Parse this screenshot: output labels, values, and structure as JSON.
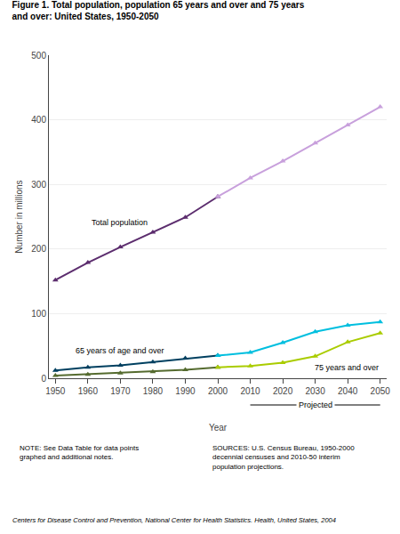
{
  "chart_data": {
    "type": "line",
    "title": "Figure 1. Total population, population 65 years and over and 75 years\nand over: United States, 1950-2050",
    "xlabel": "Year",
    "ylabel": "Number in millions",
    "x": [
      1950,
      1960,
      1970,
      1980,
      1990,
      2000,
      2010,
      2020,
      2030,
      2040,
      2050
    ],
    "xlim": [
      1948,
      2052
    ],
    "xticks": [
      1950,
      1960,
      1970,
      1980,
      1990,
      2000,
      2010,
      2020,
      2030,
      2040,
      2050
    ],
    "ylim": [
      0,
      500
    ],
    "yticks": [
      0,
      100,
      200,
      300,
      400,
      500
    ],
    "grid": true,
    "marker": "triangle",
    "series": [
      {
        "name": "Total population",
        "color": "#5C2D6E",
        "values": [
          152,
          179,
          203,
          226,
          249,
          281,
          null,
          null,
          null,
          null,
          null
        ]
      },
      {
        "name": "65 years of age and over",
        "color": "#004060",
        "values": [
          12,
          17,
          20,
          25,
          31,
          35,
          null,
          null,
          null,
          null,
          null
        ]
      },
      {
        "color": "#556B2F",
        "values": [
          4,
          6,
          8,
          10,
          13,
          17,
          null,
          null,
          null,
          null,
          null
        ]
      },
      {
        "color": "#C8A0DC",
        "values": [
          null,
          null,
          null,
          null,
          null,
          281,
          310,
          336,
          364,
          392,
          420
        ]
      },
      {
        "color": "#00BFDF",
        "values": [
          null,
          null,
          null,
          null,
          null,
          35,
          40,
          55,
          72,
          82,
          87
        ]
      },
      {
        "name": "75 years and over",
        "color": "#AACC00",
        "values": [
          null,
          null,
          null,
          null,
          null,
          17,
          19,
          24,
          34,
          56,
          70
        ]
      }
    ],
    "annotations": [
      "Projected"
    ],
    "notes": [
      "NOTE: See Data Table for data points\ngraphed and additional notes.",
      "SOURCES: U.S. Census Bureau, 1950-2000\ndecennial censuses and 2010-50 interim\npopulation projections."
    ],
    "footer": "Centers for Disease Control and Prevention, National Center for Health Statistics. Health, United States, 2004"
  }
}
